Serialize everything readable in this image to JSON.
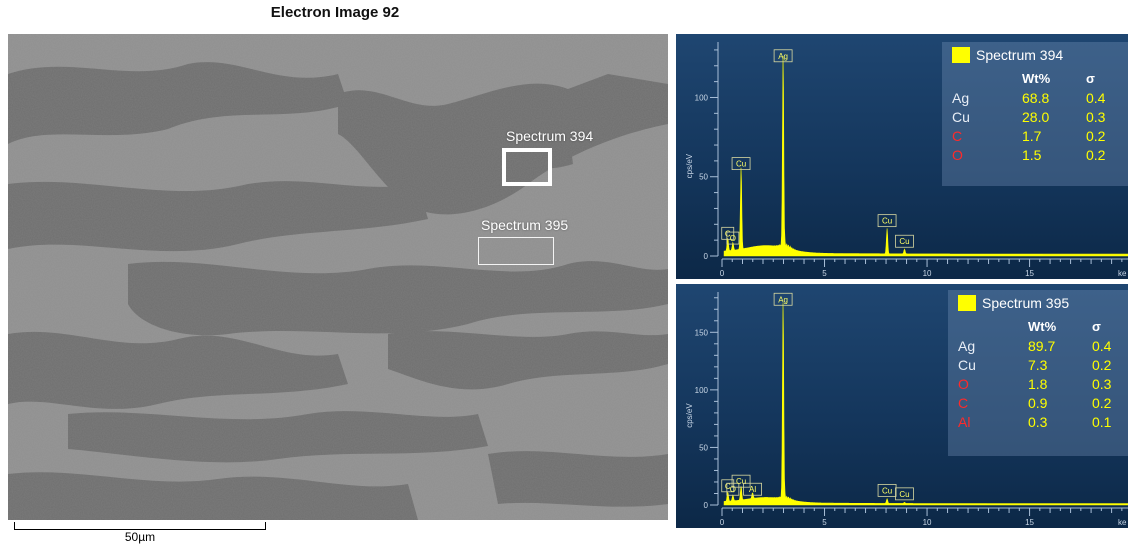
{
  "image_title": "Electron Image 92",
  "scale_bar_label": "50µm",
  "spectrum_boxes": [
    {
      "label": "Spectrum 394"
    },
    {
      "label": "Spectrum 395"
    }
  ],
  "spectra": [
    {
      "name": "Spectrum 394",
      "header": {
        "wt": "Wt%",
        "sigma": "σ"
      },
      "rows": [
        {
          "el": "Ag",
          "wt": "68.8",
          "sigma": "0.4",
          "color": "#e8eef6"
        },
        {
          "el": "Cu",
          "wt": "28.0",
          "sigma": "0.3",
          "color": "#e8eef6"
        },
        {
          "el": "C",
          "wt": "1.7",
          "sigma": "0.2",
          "color": "#ff2a2a"
        },
        {
          "el": "O",
          "wt": "1.5",
          "sigma": "0.2",
          "color": "#ff2a2a"
        }
      ],
      "y_axis_label": "cps/eV",
      "y_ticks": [
        "0",
        "50",
        "100"
      ],
      "x_ticks": [
        "0",
        "5",
        "10",
        "15"
      ],
      "x_unit": "ke",
      "ymax": 135,
      "peaks": [
        {
          "label": "C",
          "energy": 0.28,
          "height": 8
        },
        {
          "label": "O",
          "energy": 0.53,
          "height": 5
        },
        {
          "label": "Cu",
          "energy": 0.93,
          "height": 52
        },
        {
          "label": "Ag",
          "energy": 2.98,
          "height": 120
        },
        {
          "label": "Cu",
          "energy": 8.05,
          "height": 16
        },
        {
          "label": "Cu",
          "energy": 8.9,
          "height": 3
        }
      ]
    },
    {
      "name": "Spectrum 395",
      "header": {
        "wt": "Wt%",
        "sigma": "σ"
      },
      "rows": [
        {
          "el": "Ag",
          "wt": "89.7",
          "sigma": "0.4",
          "color": "#e8eef6"
        },
        {
          "el": "Cu",
          "wt": "7.3",
          "sigma": "0.2",
          "color": "#e8eef6"
        },
        {
          "el": "O",
          "wt": "1.8",
          "sigma": "0.3",
          "color": "#ff2a2a"
        },
        {
          "el": "C",
          "wt": "0.9",
          "sigma": "0.2",
          "color": "#ff2a2a"
        },
        {
          "el": "Al",
          "wt": "0.3",
          "sigma": "0.1",
          "color": "#ff2a2a"
        }
      ],
      "y_axis_label": "cps/eV",
      "y_ticks": [
        "0",
        "50",
        "100",
        "150"
      ],
      "x_ticks": [
        "0",
        "5",
        "10",
        "15"
      ],
      "x_unit": "ke",
      "ymax": 185,
      "peaks": [
        {
          "label": "C",
          "energy": 0.28,
          "height": 8
        },
        {
          "label": "O",
          "energy": 0.53,
          "height": 5
        },
        {
          "label": "Cu",
          "energy": 0.93,
          "height": 12
        },
        {
          "label": "Al",
          "energy": 1.49,
          "height": 5
        },
        {
          "label": "Ag",
          "energy": 2.98,
          "height": 170
        },
        {
          "label": "Cu",
          "energy": 8.05,
          "height": 4
        },
        {
          "label": "Cu",
          "energy": 8.9,
          "height": 1
        }
      ]
    }
  ]
}
